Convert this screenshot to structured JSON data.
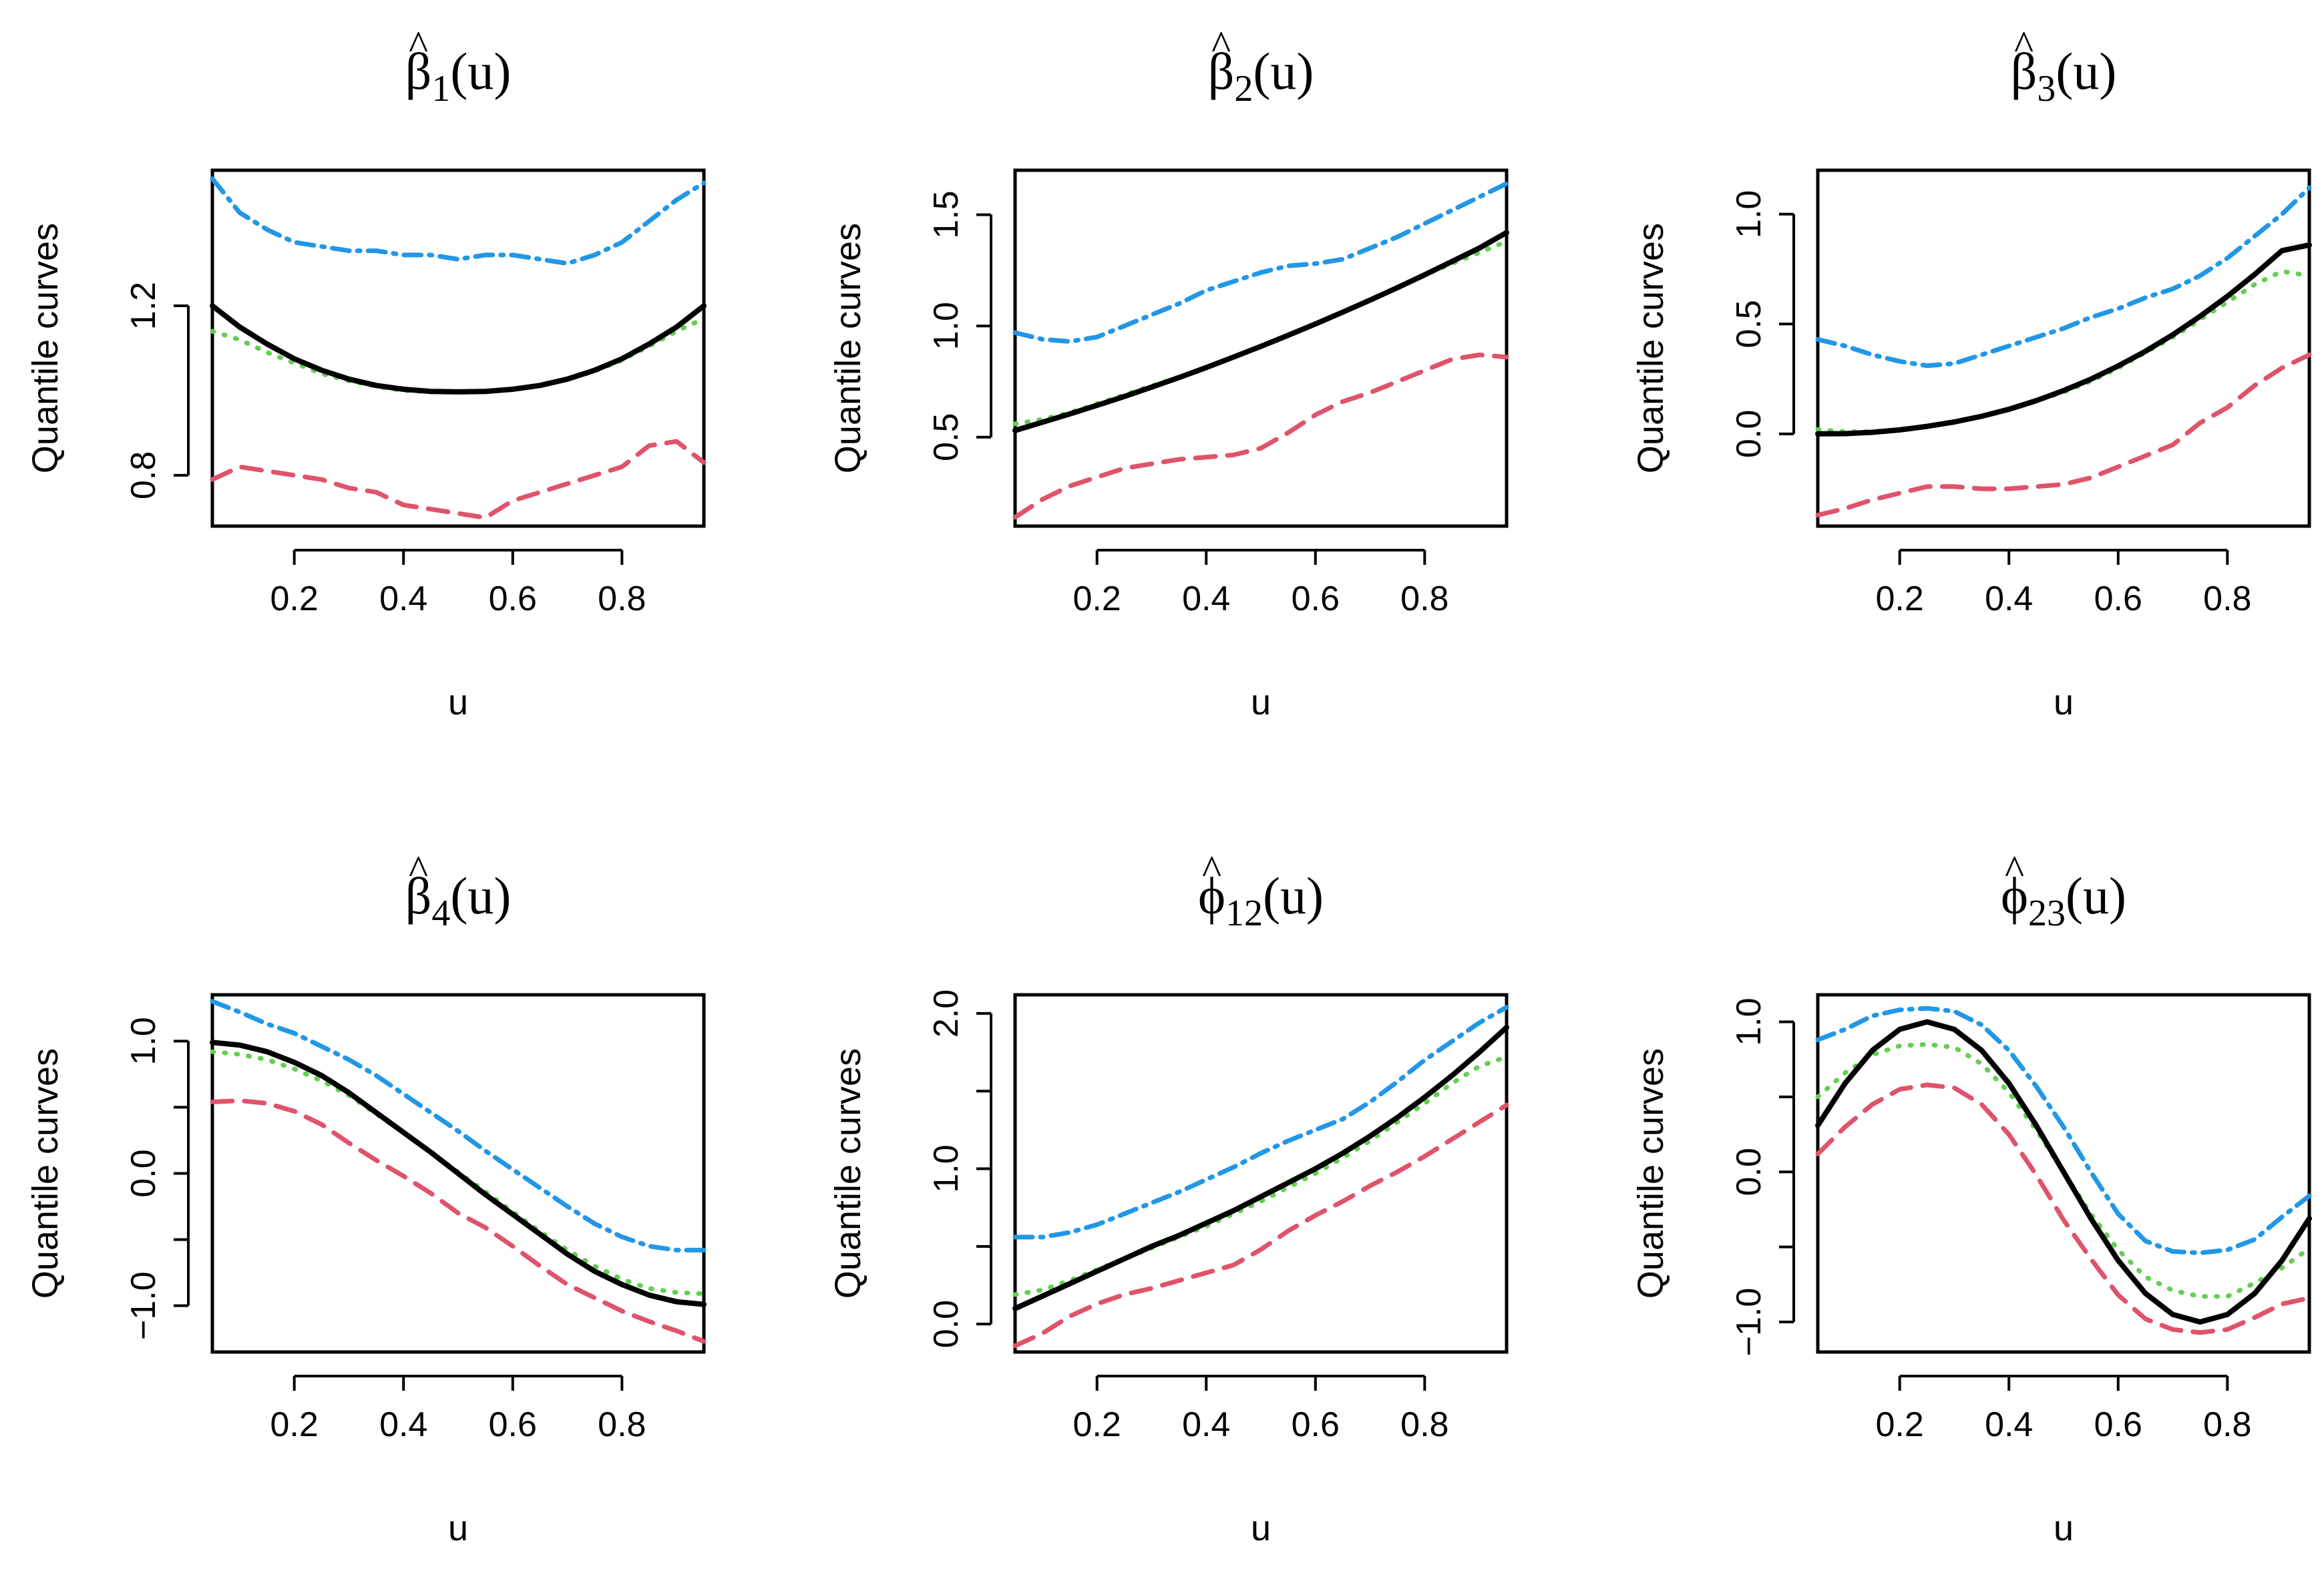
{
  "figure": {
    "panel_count": 6
  },
  "colors": {
    "axis": "#000000",
    "true_curve": "#000000",
    "median": "#61D04F",
    "upper": "#2297E6",
    "lower": "#DF536B"
  },
  "chart_data": [
    {
      "type": "line",
      "title": {
        "symbol": "β",
        "subscript": "1",
        "suffix": "(u)"
      },
      "xlabel": "u",
      "ylabel": "Quantile curves",
      "xlim": [
        0.05,
        0.95
      ],
      "ylim": [
        0.68,
        1.52
      ],
      "xticks": [
        0.2,
        0.4,
        0.6,
        0.8
      ],
      "xtick_labels": [
        "0.2",
        "0.4",
        "0.6",
        "0.8"
      ],
      "yticks": [
        0.8,
        1.2
      ],
      "ytick_labels": [
        "0.8",
        "1.2"
      ],
      "grid": false,
      "legend": "none",
      "x": [
        0.05,
        0.1,
        0.15,
        0.2,
        0.25,
        0.3,
        0.35,
        0.4,
        0.45,
        0.5,
        0.55,
        0.6,
        0.65,
        0.7,
        0.75,
        0.8,
        0.85,
        0.9,
        0.95
      ],
      "series": [
        {
          "role": "true",
          "color": "#000000",
          "dash": "",
          "width": 8,
          "values": [
            1.2,
            1.15,
            1.11,
            1.075,
            1.048,
            1.027,
            1.012,
            1.003,
            0.998,
            0.997,
            0.998,
            1.003,
            1.012,
            1.027,
            1.048,
            1.075,
            1.11,
            1.15,
            1.2
          ]
        },
        {
          "role": "median",
          "color": "#61D04F",
          "dash": "2 16",
          "width": 7,
          "values": [
            1.14,
            1.12,
            1.09,
            1.065,
            1.04,
            1.023,
            1.01,
            1.0,
            0.997,
            0.997,
            0.998,
            1.003,
            1.012,
            1.026,
            1.046,
            1.072,
            1.105,
            1.14,
            1.17
          ]
        },
        {
          "role": "upper",
          "color": "#2297E6",
          "dash": "26 12 4 12",
          "width": 7,
          "values": [
            1.5,
            1.42,
            1.38,
            1.35,
            1.34,
            1.33,
            1.33,
            1.32,
            1.32,
            1.31,
            1.32,
            1.32,
            1.31,
            1.3,
            1.32,
            1.35,
            1.4,
            1.45,
            1.49
          ]
        },
        {
          "role": "lower",
          "color": "#DF536B",
          "dash": "30 18",
          "width": 7,
          "values": [
            0.79,
            0.82,
            0.81,
            0.8,
            0.79,
            0.77,
            0.76,
            0.73,
            0.72,
            0.71,
            0.7,
            0.74,
            0.76,
            0.78,
            0.8,
            0.82,
            0.87,
            0.88,
            0.83
          ]
        }
      ]
    },
    {
      "type": "line",
      "title": {
        "symbol": "β",
        "subscript": "2",
        "suffix": "(u)"
      },
      "xlabel": "u",
      "ylabel": "Quantile curves",
      "xlim": [
        0.05,
        0.95
      ],
      "ylim": [
        0.1,
        1.7
      ],
      "xticks": [
        0.2,
        0.4,
        0.6,
        0.8
      ],
      "xtick_labels": [
        "0.2",
        "0.4",
        "0.6",
        "0.8"
      ],
      "yticks": [
        0.5,
        1.0,
        1.5
      ],
      "ytick_labels": [
        "0.5",
        "1.0",
        "1.5"
      ],
      "grid": false,
      "legend": "none",
      "x": [
        0.05,
        0.1,
        0.15,
        0.2,
        0.25,
        0.3,
        0.35,
        0.4,
        0.45,
        0.5,
        0.55,
        0.6,
        0.65,
        0.7,
        0.75,
        0.8,
        0.85,
        0.9,
        0.95
      ],
      "series": [
        {
          "role": "true",
          "color": "#000000",
          "dash": "",
          "width": 8,
          "values": [
            0.53,
            0.567,
            0.604,
            0.643,
            0.683,
            0.725,
            0.768,
            0.813,
            0.86,
            0.908,
            0.958,
            1.009,
            1.062,
            1.116,
            1.172,
            1.23,
            1.29,
            1.35,
            1.42
          ]
        },
        {
          "role": "median",
          "color": "#61D04F",
          "dash": "2 16",
          "width": 7,
          "values": [
            0.56,
            0.58,
            0.61,
            0.65,
            0.69,
            0.73,
            0.77,
            0.81,
            0.86,
            0.91,
            0.96,
            1.01,
            1.06,
            1.12,
            1.17,
            1.23,
            1.28,
            1.33,
            1.38
          ]
        },
        {
          "role": "upper",
          "color": "#2297E6",
          "dash": "26 12 4 12",
          "width": 7,
          "values": [
            0.97,
            0.94,
            0.93,
            0.95,
            1.0,
            1.05,
            1.1,
            1.16,
            1.2,
            1.24,
            1.27,
            1.28,
            1.3,
            1.35,
            1.4,
            1.46,
            1.52,
            1.58,
            1.64
          ]
        },
        {
          "role": "lower",
          "color": "#DF536B",
          "dash": "30 18",
          "width": 7,
          "values": [
            0.14,
            0.22,
            0.28,
            0.32,
            0.36,
            0.38,
            0.4,
            0.41,
            0.42,
            0.45,
            0.52,
            0.6,
            0.66,
            0.7,
            0.75,
            0.8,
            0.85,
            0.87,
            0.86
          ]
        }
      ]
    },
    {
      "type": "line",
      "title": {
        "symbol": "β",
        "subscript": "3",
        "suffix": "(u)"
      },
      "xlabel": "u",
      "ylabel": "Quantile curves",
      "xlim": [
        0.05,
        0.95
      ],
      "ylim": [
        -0.42,
        1.2
      ],
      "xticks": [
        0.2,
        0.4,
        0.6,
        0.8
      ],
      "xtick_labels": [
        "0.2",
        "0.4",
        "0.6",
        "0.8"
      ],
      "yticks": [
        0.0,
        0.5,
        1.0
      ],
      "ytick_labels": [
        "0.0",
        "0.5",
        "1.0"
      ],
      "grid": false,
      "legend": "none",
      "x": [
        0.05,
        0.1,
        0.15,
        0.2,
        0.25,
        0.3,
        0.35,
        0.4,
        0.45,
        0.5,
        0.55,
        0.6,
        0.65,
        0.7,
        0.75,
        0.8,
        0.85,
        0.9,
        0.95
      ],
      "series": [
        {
          "role": "true",
          "color": "#000000",
          "dash": "",
          "width": 8,
          "values": [
            0.0,
            0.001,
            0.007,
            0.018,
            0.034,
            0.054,
            0.08,
            0.112,
            0.151,
            0.197,
            0.249,
            0.309,
            0.376,
            0.451,
            0.535,
            0.626,
            0.726,
            0.834,
            0.86
          ]
        },
        {
          "role": "median",
          "color": "#61D04F",
          "dash": "2 16",
          "width": 7,
          "values": [
            0.02,
            0.01,
            0.01,
            0.02,
            0.035,
            0.055,
            0.08,
            0.11,
            0.15,
            0.19,
            0.24,
            0.3,
            0.37,
            0.44,
            0.52,
            0.6,
            0.68,
            0.74,
            0.72
          ]
        },
        {
          "role": "upper",
          "color": "#2297E6",
          "dash": "26 12 4 12",
          "width": 7,
          "values": [
            0.43,
            0.4,
            0.36,
            0.33,
            0.31,
            0.32,
            0.36,
            0.4,
            0.44,
            0.48,
            0.53,
            0.57,
            0.62,
            0.66,
            0.72,
            0.8,
            0.9,
            1.0,
            1.12
          ]
        },
        {
          "role": "lower",
          "color": "#DF536B",
          "dash": "30 18",
          "width": 7,
          "values": [
            -0.37,
            -0.34,
            -0.3,
            -0.27,
            -0.24,
            -0.24,
            -0.25,
            -0.25,
            -0.24,
            -0.23,
            -0.2,
            -0.15,
            -0.1,
            -0.05,
            0.05,
            0.12,
            0.22,
            0.3,
            0.36
          ]
        }
      ]
    },
    {
      "type": "line",
      "title": {
        "symbol": "β",
        "subscript": "4",
        "suffix": "(u)"
      },
      "xlabel": "u",
      "ylabel": "Quantile curves",
      "xlim": [
        0.05,
        0.95
      ],
      "ylim": [
        -1.35,
        1.35
      ],
      "xticks": [
        0.2,
        0.4,
        0.6,
        0.8
      ],
      "xtick_labels": [
        "0.2",
        "0.4",
        "0.6",
        "0.8"
      ],
      "yticks": [
        -1.0,
        -0.5,
        0.0,
        0.5,
        1.0
      ],
      "ytick_labels": [
        "−1.0",
        "",
        "0.0",
        "",
        "1.0"
      ],
      "grid": false,
      "legend": "none",
      "x": [
        0.05,
        0.1,
        0.15,
        0.2,
        0.25,
        0.3,
        0.35,
        0.4,
        0.45,
        0.5,
        0.55,
        0.6,
        0.65,
        0.7,
        0.75,
        0.8,
        0.85,
        0.9,
        0.95
      ],
      "series": [
        {
          "role": "true",
          "color": "#000000",
          "dash": "",
          "width": 8,
          "values": [
            0.99,
            0.97,
            0.92,
            0.84,
            0.74,
            0.61,
            0.46,
            0.31,
            0.16,
            0.0,
            -0.16,
            -0.31,
            -0.46,
            -0.61,
            -0.74,
            -0.84,
            -0.92,
            -0.97,
            -0.99
          ]
        },
        {
          "role": "median",
          "color": "#61D04F",
          "dash": "2 16",
          "width": 7,
          "values": [
            0.92,
            0.9,
            0.86,
            0.79,
            0.7,
            0.59,
            0.45,
            0.31,
            0.16,
            0.01,
            -0.14,
            -0.29,
            -0.44,
            -0.58,
            -0.7,
            -0.8,
            -0.87,
            -0.9,
            -0.91
          ]
        },
        {
          "role": "upper",
          "color": "#2297E6",
          "dash": "26 12 4 12",
          "width": 7,
          "values": [
            1.3,
            1.22,
            1.13,
            1.06,
            0.96,
            0.86,
            0.74,
            0.6,
            0.46,
            0.32,
            0.17,
            0.03,
            -0.11,
            -0.25,
            -0.38,
            -0.48,
            -0.55,
            -0.58,
            -0.58
          ]
        },
        {
          "role": "lower",
          "color": "#DF536B",
          "dash": "30 18",
          "width": 7,
          "values": [
            0.54,
            0.55,
            0.53,
            0.47,
            0.37,
            0.23,
            0.1,
            -0.02,
            -0.15,
            -0.3,
            -0.41,
            -0.55,
            -0.7,
            -0.84,
            -0.94,
            -1.04,
            -1.12,
            -1.19,
            -1.27
          ]
        }
      ]
    },
    {
      "type": "line",
      "title": {
        "symbol": "ϕ",
        "subscript": "12",
        "suffix": "(u)"
      },
      "xlabel": "u",
      "ylabel": "Quantile curves",
      "xlim": [
        0.05,
        0.95
      ],
      "ylim": [
        -0.18,
        2.12
      ],
      "xticks": [
        0.2,
        0.4,
        0.6,
        0.8
      ],
      "xtick_labels": [
        "0.2",
        "0.4",
        "0.6",
        "0.8"
      ],
      "yticks": [
        0.0,
        0.5,
        1.0,
        1.5,
        2.0
      ],
      "ytick_labels": [
        "0.0",
        "",
        "1.0",
        "",
        "2.0"
      ],
      "grid": false,
      "legend": "none",
      "x": [
        0.05,
        0.1,
        0.15,
        0.2,
        0.25,
        0.3,
        0.35,
        0.4,
        0.45,
        0.5,
        0.55,
        0.6,
        0.65,
        0.7,
        0.75,
        0.8,
        0.85,
        0.9,
        0.95
      ],
      "series": [
        {
          "role": "true",
          "color": "#000000",
          "dash": "",
          "width": 8,
          "values": [
            0.1,
            0.18,
            0.26,
            0.34,
            0.42,
            0.5,
            0.57,
            0.65,
            0.73,
            0.82,
            0.91,
            1.0,
            1.1,
            1.21,
            1.33,
            1.46,
            1.6,
            1.75,
            1.91
          ]
        },
        {
          "role": "median",
          "color": "#61D04F",
          "dash": "2 16",
          "width": 7,
          "values": [
            0.19,
            0.22,
            0.28,
            0.35,
            0.42,
            0.49,
            0.56,
            0.63,
            0.71,
            0.79,
            0.88,
            0.97,
            1.07,
            1.18,
            1.3,
            1.42,
            1.55,
            1.66,
            1.72
          ]
        },
        {
          "role": "upper",
          "color": "#2297E6",
          "dash": "26 12 4 12",
          "width": 7,
          "values": [
            0.56,
            0.56,
            0.59,
            0.64,
            0.71,
            0.78,
            0.85,
            0.93,
            1.01,
            1.1,
            1.18,
            1.25,
            1.32,
            1.43,
            1.56,
            1.7,
            1.82,
            1.94,
            2.04
          ]
        },
        {
          "role": "lower",
          "color": "#DF536B",
          "dash": "30 18",
          "width": 7,
          "values": [
            -0.14,
            -0.06,
            0.05,
            0.13,
            0.19,
            0.23,
            0.28,
            0.33,
            0.38,
            0.48,
            0.6,
            0.7,
            0.79,
            0.89,
            0.98,
            1.08,
            1.19,
            1.3,
            1.41
          ]
        }
      ]
    },
    {
      "type": "line",
      "title": {
        "symbol": "ϕ",
        "subscript": "23",
        "suffix": "(u)"
      },
      "xlabel": "u",
      "ylabel": "Quantile curves",
      "xlim": [
        0.05,
        0.95
      ],
      "ylim": [
        -1.2,
        1.18
      ],
      "xticks": [
        0.2,
        0.4,
        0.6,
        0.8
      ],
      "xtick_labels": [
        "0.2",
        "0.4",
        "0.6",
        "0.8"
      ],
      "yticks": [
        -1.0,
        -0.5,
        0.0,
        0.5,
        1.0
      ],
      "ytick_labels": [
        "−1.0",
        "",
        "0.0",
        "",
        "1.0"
      ],
      "grid": false,
      "legend": "none",
      "x": [
        0.05,
        0.1,
        0.15,
        0.2,
        0.25,
        0.3,
        0.35,
        0.4,
        0.45,
        0.5,
        0.55,
        0.6,
        0.65,
        0.7,
        0.75,
        0.8,
        0.85,
        0.9,
        0.95
      ],
      "series": [
        {
          "role": "true",
          "color": "#000000",
          "dash": "",
          "width": 8,
          "values": [
            0.31,
            0.59,
            0.81,
            0.95,
            1.0,
            0.95,
            0.81,
            0.59,
            0.31,
            0.0,
            -0.31,
            -0.59,
            -0.81,
            -0.95,
            -1.0,
            -0.95,
            -0.81,
            -0.59,
            -0.31
          ]
        },
        {
          "role": "median",
          "color": "#61D04F",
          "dash": "2 16",
          "width": 7,
          "values": [
            0.5,
            0.66,
            0.78,
            0.84,
            0.85,
            0.83,
            0.72,
            0.53,
            0.28,
            0.0,
            -0.28,
            -0.52,
            -0.7,
            -0.79,
            -0.83,
            -0.83,
            -0.74,
            -0.64,
            -0.51
          ]
        },
        {
          "role": "upper",
          "color": "#2297E6",
          "dash": "26 12 4 12",
          "width": 7,
          "values": [
            0.88,
            0.95,
            1.04,
            1.08,
            1.09,
            1.07,
            0.98,
            0.81,
            0.57,
            0.3,
            0.0,
            -0.28,
            -0.46,
            -0.53,
            -0.54,
            -0.52,
            -0.45,
            -0.3,
            -0.16
          ]
        },
        {
          "role": "lower",
          "color": "#DF536B",
          "dash": "30 18",
          "width": 7,
          "values": [
            0.12,
            0.3,
            0.45,
            0.55,
            0.58,
            0.56,
            0.45,
            0.25,
            -0.02,
            -0.32,
            -0.58,
            -0.82,
            -0.98,
            -1.05,
            -1.07,
            -1.05,
            -0.97,
            -0.88,
            -0.84
          ]
        }
      ]
    }
  ]
}
